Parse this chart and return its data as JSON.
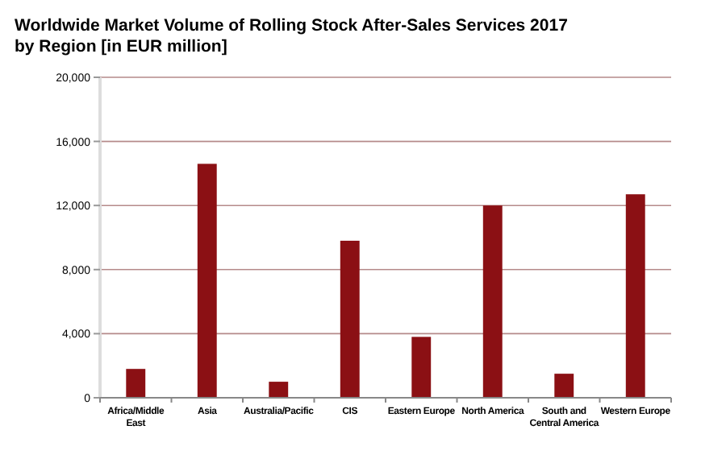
{
  "chart_data": {
    "type": "bar",
    "title": "Worldwide Market Volume of Rolling Stock After-Sales Services 2017 by Region [in EUR million]",
    "categories": [
      "Africa/Middle East",
      "Asia",
      "Australia/Pacific",
      "CIS",
      "Eastern Europe",
      "North America",
      "South and Central America",
      "Western Europe"
    ],
    "values": [
      1800,
      14600,
      1000,
      9800,
      3800,
      12000,
      1500,
      12700
    ],
    "color": "#8b1014",
    "ylim": [
      0,
      20000
    ],
    "yticks": [
      {
        "value": 0,
        "label": "0"
      },
      {
        "value": 4000,
        "label": "4,000"
      },
      {
        "value": 8000,
        "label": "8,000"
      },
      {
        "value": 12000,
        "label": "12,000"
      },
      {
        "value": 16000,
        "label": "16,000"
      },
      {
        "value": 20000,
        "label": "20,000"
      }
    ],
    "grid": "y"
  }
}
